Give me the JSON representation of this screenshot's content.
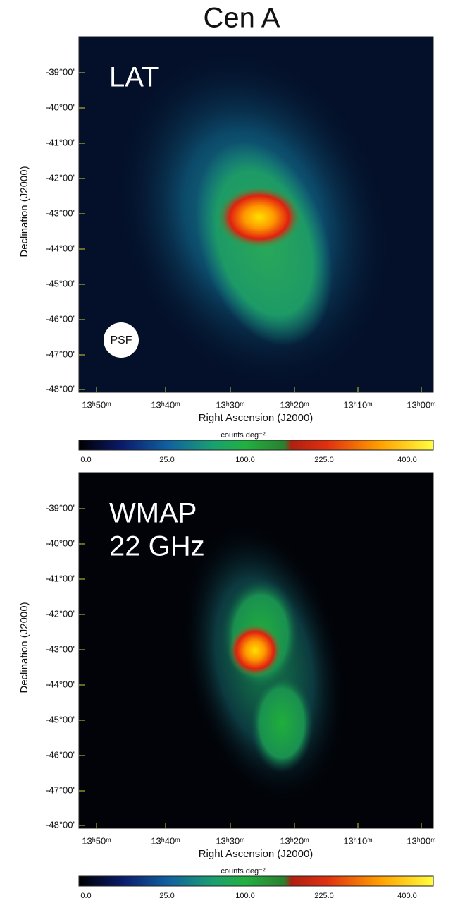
{
  "title": "Cen A",
  "panels": [
    {
      "label": [
        "LAT"
      ],
      "psf": "PSF",
      "y_ticks": [
        "-39°00'",
        "-40°00'",
        "-41°00'",
        "-42°00'",
        "-43°00'",
        "-44°00'",
        "-45°00'",
        "-46°00'",
        "-47°00'",
        "-48°00'"
      ],
      "x_ticks": [
        "13ʰ50ᵐ",
        "13ʰ40ᵐ",
        "13ʰ30ᵐ",
        "13ʰ20ᵐ",
        "13ʰ10ᵐ",
        "13ʰ00ᵐ"
      ],
      "x_axis_label": "Right Ascension (J2000)",
      "y_axis_label": "Declination (J2000)",
      "colorbar_label": "counts deg⁻²",
      "colorbar_ticks": [
        "0.0",
        "25.0",
        "100.0",
        "225.0",
        "400.0"
      ]
    },
    {
      "label": [
        "WMAP",
        "22 GHz"
      ],
      "y_ticks": [
        "-39°00'",
        "-40°00'",
        "-41°00'",
        "-42°00'",
        "-43°00'",
        "-44°00'",
        "-45°00'",
        "-46°00'",
        "-47°00'",
        "-48°00'"
      ],
      "x_ticks": [
        "13ʰ50ᵐ",
        "13ʰ40ᵐ",
        "13ʰ30ᵐ",
        "13ʰ20ᵐ",
        "13ʰ10ᵐ",
        "13ʰ00ᵐ"
      ],
      "x_axis_label": "Right Ascension (J2000)",
      "y_axis_label": "Declination (J2000)",
      "colorbar_label": "counts deg⁻²",
      "colorbar_ticks": [
        "0.0",
        "25.0",
        "100.0",
        "225.0",
        "400.0"
      ]
    }
  ]
}
